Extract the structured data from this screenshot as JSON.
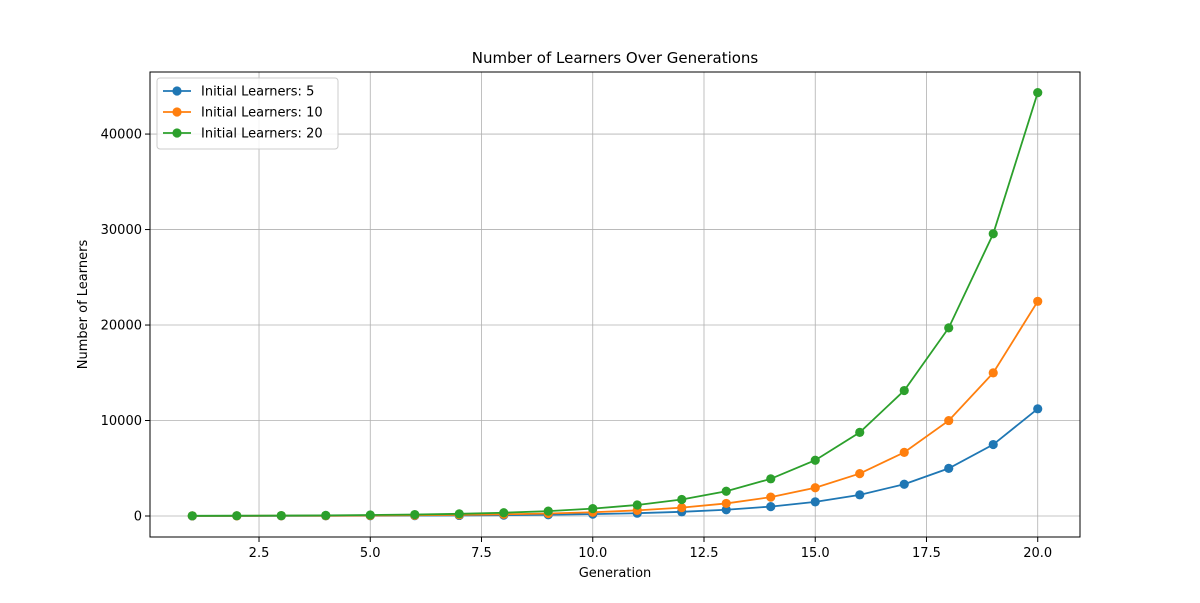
{
  "chart_data": {
    "type": "line",
    "title": "Number of Learners Over Generations",
    "xlabel": "Generation",
    "ylabel": "Number of Learners",
    "xlim": [
      0.05,
      20.95
    ],
    "ylim": [
      -2200,
      46500
    ],
    "xticks": [
      2.5,
      5.0,
      7.5,
      10.0,
      12.5,
      15.0,
      17.5,
      20.0
    ],
    "xtick_labels": [
      "2.5",
      "5.0",
      "7.5",
      "10.0",
      "12.5",
      "15.0",
      "17.5",
      "20.0"
    ],
    "yticks": [
      0,
      10000,
      20000,
      30000,
      40000
    ],
    "ytick_labels": [
      "0",
      "10000",
      "20000",
      "30000",
      "40000"
    ],
    "grid": true,
    "legend_position": "top-left",
    "x": [
      1,
      2,
      3,
      4,
      5,
      6,
      7,
      8,
      9,
      10,
      11,
      12,
      13,
      14,
      15,
      16,
      17,
      18,
      19,
      20
    ],
    "series": [
      {
        "name": "Initial Learners: 5",
        "color": "#1f77b4",
        "values": [
          5,
          7,
          11,
          17,
          25,
          38,
          57,
          86,
          130,
          195,
          292,
          438,
          657,
          985,
          1478,
          2217,
          3326,
          4988,
          7483,
          11224
        ]
      },
      {
        "name": "Initial Learners: 10",
        "color": "#ff7f0e",
        "values": [
          10,
          15,
          23,
          34,
          51,
          77,
          115,
          173,
          260,
          390,
          585,
          877,
          1316,
          1974,
          2961,
          4441,
          6662,
          9993,
          14990,
          22484
        ]
      },
      {
        "name": "Initial Learners: 20",
        "color": "#2ca02c",
        "values": [
          20,
          30,
          45,
          68,
          101,
          152,
          228,
          342,
          513,
          769,
          1153,
          1730,
          2595,
          3892,
          5839,
          8758,
          13137,
          19705,
          29558,
          44337
        ]
      }
    ]
  }
}
